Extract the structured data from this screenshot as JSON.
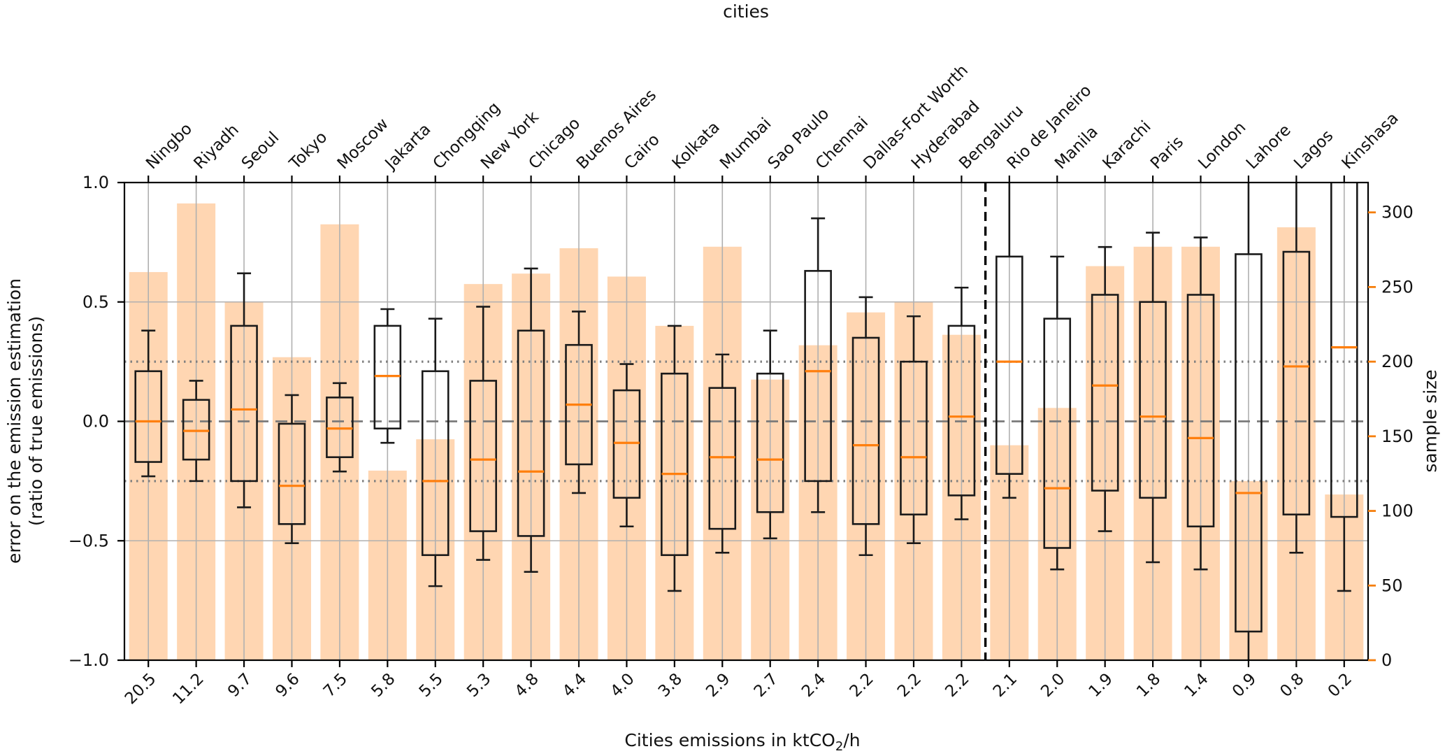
{
  "figure": {
    "title": "cities",
    "xlabel": {
      "prefix": "Cities emissions in ktCO",
      "sub": "2",
      "suffix": "/h"
    },
    "ylabel_left_line1": "error on the emission estimation",
    "ylabel_left_line2": "(ratio of true emissions)",
    "ylabel_right": "sample size"
  },
  "axes": {
    "left_tick_labels": [
      "1.0",
      "0.5",
      "0.0",
      "−0.5",
      "−1.0"
    ],
    "left_tick_values": [
      1.0,
      0.5,
      0.0,
      -0.5,
      -1.0
    ],
    "left_range": [
      -1.0,
      1.0
    ],
    "right_tick_labels": [
      "0",
      "50",
      "100",
      "150",
      "200",
      "250",
      "300"
    ],
    "right_tick_values": [
      0,
      50,
      100,
      150,
      200,
      250,
      300
    ],
    "right_range": [
      0,
      320
    ],
    "hlines": {
      "solid": [
        0.5,
        -0.5
      ],
      "dotted": [
        0.25,
        -0.25
      ],
      "dashed": [
        0.0
      ]
    },
    "separator_after_category_index": 17
  },
  "colors": {
    "bar_fill": "rgba(255,127,14,0.32)",
    "median": "#ff7f0e",
    "right_axis": "#f57f0e",
    "box_edge": "#1a1a1a",
    "grid": "#b0b0b0",
    "dotted_line": "#808080",
    "zero_line": "#7a7a7a",
    "separator": "#000000",
    "spine": "#000000"
  },
  "chart_data": {
    "type": "boxplot_with_bars",
    "title": "cities",
    "xlabel": "Cities emissions in ktCO2/h",
    "ylabel_left": "error on the emission estimation (ratio of true emissions)",
    "ylabel_right": "sample size",
    "ylim_left": [
      -1.0,
      1.0
    ],
    "ylim_right": [
      0,
      320
    ],
    "grid": "on",
    "note": "box/whisker values beyond ylim are clipped at the axes edge; dashed vertical separator after Bengaluru",
    "categories": [
      "Ningbo",
      "Riyadh",
      "Seoul",
      "Tokyo",
      "Moscow",
      "Jakarta",
      "Chongqing",
      "New York",
      "Chicago",
      "Buenos Aires",
      "Cairo",
      "Kolkata",
      "Mumbai",
      "Sao Paulo",
      "Chennai",
      "Dallas-Fort Worth",
      "Hyderabad",
      "Bengaluru",
      "Rio de Janeiro",
      "Manila",
      "Karachi",
      "Paris",
      "London",
      "Lahore",
      "Lagos",
      "Kinshasa"
    ],
    "x_tick_labels": [
      "20.5",
      "11.2",
      "9.7",
      "9.6",
      "7.5",
      "5.8",
      "5.5",
      "5.3",
      "4.8",
      "4.4",
      "4.0",
      "3.8",
      "2.9",
      "2.7",
      "2.4",
      "2.2",
      "2.2",
      "2.2",
      "2.1",
      "2.0",
      "1.9",
      "1.8",
      "1.4",
      "0.9",
      "0.8",
      "0.2"
    ],
    "bar_series": {
      "name": "sample size",
      "values": [
        260,
        306,
        240,
        203,
        292,
        127,
        148,
        252,
        259,
        276,
        257,
        224,
        277,
        188,
        211,
        233,
        240,
        218,
        144,
        169,
        264,
        277,
        277,
        120,
        290,
        111
      ]
    },
    "box_series": {
      "name": "error on the emission estimation",
      "stats": [
        {
          "whislo": -0.23,
          "q1": -0.17,
          "med": 0.0,
          "q3": 0.21,
          "whishi": 0.38
        },
        {
          "whislo": -0.25,
          "q1": -0.16,
          "med": -0.04,
          "q3": 0.09,
          "whishi": 0.17
        },
        {
          "whislo": -0.36,
          "q1": -0.25,
          "med": 0.05,
          "q3": 0.4,
          "whishi": 0.62
        },
        {
          "whislo": -0.51,
          "q1": -0.43,
          "med": -0.27,
          "q3": -0.01,
          "whishi": 0.11
        },
        {
          "whislo": -0.21,
          "q1": -0.15,
          "med": -0.03,
          "q3": 0.1,
          "whishi": 0.16
        },
        {
          "whislo": -0.09,
          "q1": -0.03,
          "med": 0.19,
          "q3": 0.4,
          "whishi": 0.47
        },
        {
          "whislo": -0.69,
          "q1": -0.56,
          "med": -0.25,
          "q3": 0.21,
          "whishi": 0.43
        },
        {
          "whislo": -0.58,
          "q1": -0.46,
          "med": -0.16,
          "q3": 0.17,
          "whishi": 0.48
        },
        {
          "whislo": -0.63,
          "q1": -0.48,
          "med": -0.21,
          "q3": 0.38,
          "whishi": 0.64
        },
        {
          "whislo": -0.3,
          "q1": -0.18,
          "med": 0.07,
          "q3": 0.32,
          "whishi": 0.46
        },
        {
          "whislo": -0.44,
          "q1": -0.32,
          "med": -0.09,
          "q3": 0.13,
          "whishi": 0.24
        },
        {
          "whislo": -0.71,
          "q1": -0.56,
          "med": -0.22,
          "q3": 0.2,
          "whishi": 0.4
        },
        {
          "whislo": -0.55,
          "q1": -0.45,
          "med": -0.15,
          "q3": 0.14,
          "whishi": 0.28
        },
        {
          "whislo": -0.49,
          "q1": -0.38,
          "med": -0.16,
          "q3": 0.2,
          "whishi": 0.38
        },
        {
          "whislo": -0.38,
          "q1": -0.25,
          "med": 0.21,
          "q3": 0.63,
          "whishi": 0.85
        },
        {
          "whislo": -0.56,
          "q1": -0.43,
          "med": -0.1,
          "q3": 0.35,
          "whishi": 0.52
        },
        {
          "whislo": -0.51,
          "q1": -0.39,
          "med": -0.15,
          "q3": 0.25,
          "whishi": 0.44
        },
        {
          "whislo": -0.41,
          "q1": -0.31,
          "med": 0.02,
          "q3": 0.4,
          "whishi": 0.56
        },
        {
          "whislo": -0.32,
          "q1": -0.22,
          "med": 0.25,
          "q3": 0.69,
          "whishi": 1.06,
          "whishi_clipped": true
        },
        {
          "whislo": -0.62,
          "q1": -0.53,
          "med": -0.28,
          "q3": 0.43,
          "whishi": 0.69
        },
        {
          "whislo": -0.46,
          "q1": -0.29,
          "med": 0.15,
          "q3": 0.53,
          "whishi": 0.73
        },
        {
          "whislo": -0.59,
          "q1": -0.32,
          "med": 0.02,
          "q3": 0.5,
          "whishi": 0.79
        },
        {
          "whislo": -0.62,
          "q1": -0.44,
          "med": -0.07,
          "q3": 0.53,
          "whishi": 0.77
        },
        {
          "whislo": -1.06,
          "q1": -0.88,
          "med": -0.3,
          "q3": 0.7,
          "whishi": 1.06,
          "whislo_clipped": true,
          "whishi_clipped": true
        },
        {
          "whislo": -0.55,
          "q1": -0.39,
          "med": 0.23,
          "q3": 0.71,
          "whishi": 1.06,
          "whishi_clipped": true
        },
        {
          "whislo": -0.71,
          "q1": -0.4,
          "med": 0.31,
          "q3": 1.06,
          "whishi": 1.12,
          "q3_clipped": true,
          "whishi_clipped": true
        }
      ]
    }
  }
}
